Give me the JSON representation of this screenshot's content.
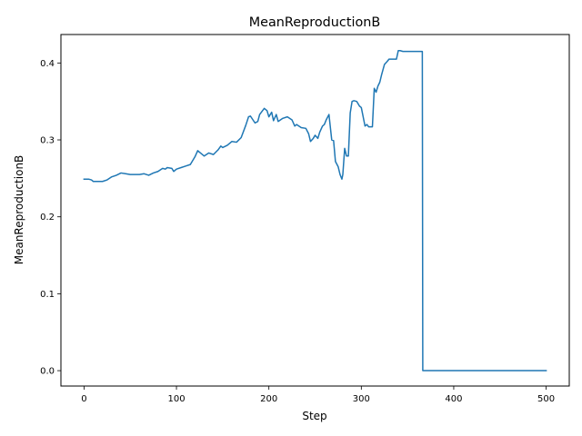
{
  "chart_data": {
    "type": "line",
    "title": "MeanReproductionB",
    "xlabel": "Step",
    "ylabel": "MeanReproductionB",
    "xlim": [
      -25,
      525
    ],
    "ylim": [
      -0.02,
      0.437
    ],
    "xticks": [
      0,
      100,
      200,
      300,
      400,
      500
    ],
    "xtick_labels": [
      "0",
      "100",
      "200",
      "300",
      "400",
      "500"
    ],
    "yticks": [
      0.0,
      0.1,
      0.2,
      0.3,
      0.4
    ],
    "ytick_labels": [
      "0.0",
      "0.1",
      "0.2",
      "0.3",
      "0.4"
    ],
    "grid": false,
    "series": [
      {
        "color": "#1f77b4",
        "x": [
          0,
          5,
          8,
          10,
          15,
          20,
          25,
          30,
          35,
          40,
          45,
          50,
          55,
          60,
          65,
          70,
          75,
          80,
          85,
          88,
          90,
          95,
          97,
          100,
          105,
          110,
          115,
          120,
          123,
          125,
          130,
          135,
          140,
          145,
          148,
          150,
          155,
          160,
          165,
          170,
          175,
          178,
          180,
          185,
          188,
          190,
          195,
          198,
          200,
          203,
          205,
          208,
          210,
          215,
          220,
          225,
          228,
          230,
          235,
          240,
          243,
          245,
          248,
          250,
          253,
          255,
          258,
          260,
          262,
          265,
          268,
          270,
          272,
          275,
          277,
          279,
          280,
          282,
          284,
          286,
          288,
          290,
          292,
          295,
          298,
          300,
          302,
          304,
          306,
          308,
          310,
          312,
          314,
          316,
          318,
          320,
          322,
          325,
          328,
          330,
          332,
          335,
          338,
          340,
          342,
          345,
          350,
          355,
          360,
          366,
          366.5,
          500
        ],
        "y": [
          0.249,
          0.249,
          0.248,
          0.246,
          0.246,
          0.246,
          0.248,
          0.252,
          0.254,
          0.257,
          0.256,
          0.255,
          0.255,
          0.255,
          0.256,
          0.254,
          0.257,
          0.259,
          0.263,
          0.262,
          0.264,
          0.263,
          0.259,
          0.262,
          0.264,
          0.266,
          0.268,
          0.278,
          0.286,
          0.284,
          0.279,
          0.283,
          0.281,
          0.287,
          0.292,
          0.29,
          0.293,
          0.298,
          0.297,
          0.303,
          0.319,
          0.33,
          0.331,
          0.322,
          0.324,
          0.333,
          0.341,
          0.338,
          0.33,
          0.336,
          0.325,
          0.333,
          0.324,
          0.328,
          0.33,
          0.326,
          0.318,
          0.32,
          0.316,
          0.315,
          0.308,
          0.298,
          0.302,
          0.306,
          0.302,
          0.31,
          0.318,
          0.32,
          0.326,
          0.333,
          0.3,
          0.299,
          0.272,
          0.265,
          0.255,
          0.249,
          0.255,
          0.289,
          0.279,
          0.279,
          0.335,
          0.35,
          0.351,
          0.35,
          0.344,
          0.342,
          0.33,
          0.318,
          0.32,
          0.317,
          0.317,
          0.317,
          0.367,
          0.362,
          0.37,
          0.375,
          0.385,
          0.398,
          0.402,
          0.405,
          0.405,
          0.405,
          0.405,
          0.416,
          0.416,
          0.415,
          0.415,
          0.415,
          0.415,
          0.415,
          0.0,
          0.0
        ]
      }
    ]
  }
}
